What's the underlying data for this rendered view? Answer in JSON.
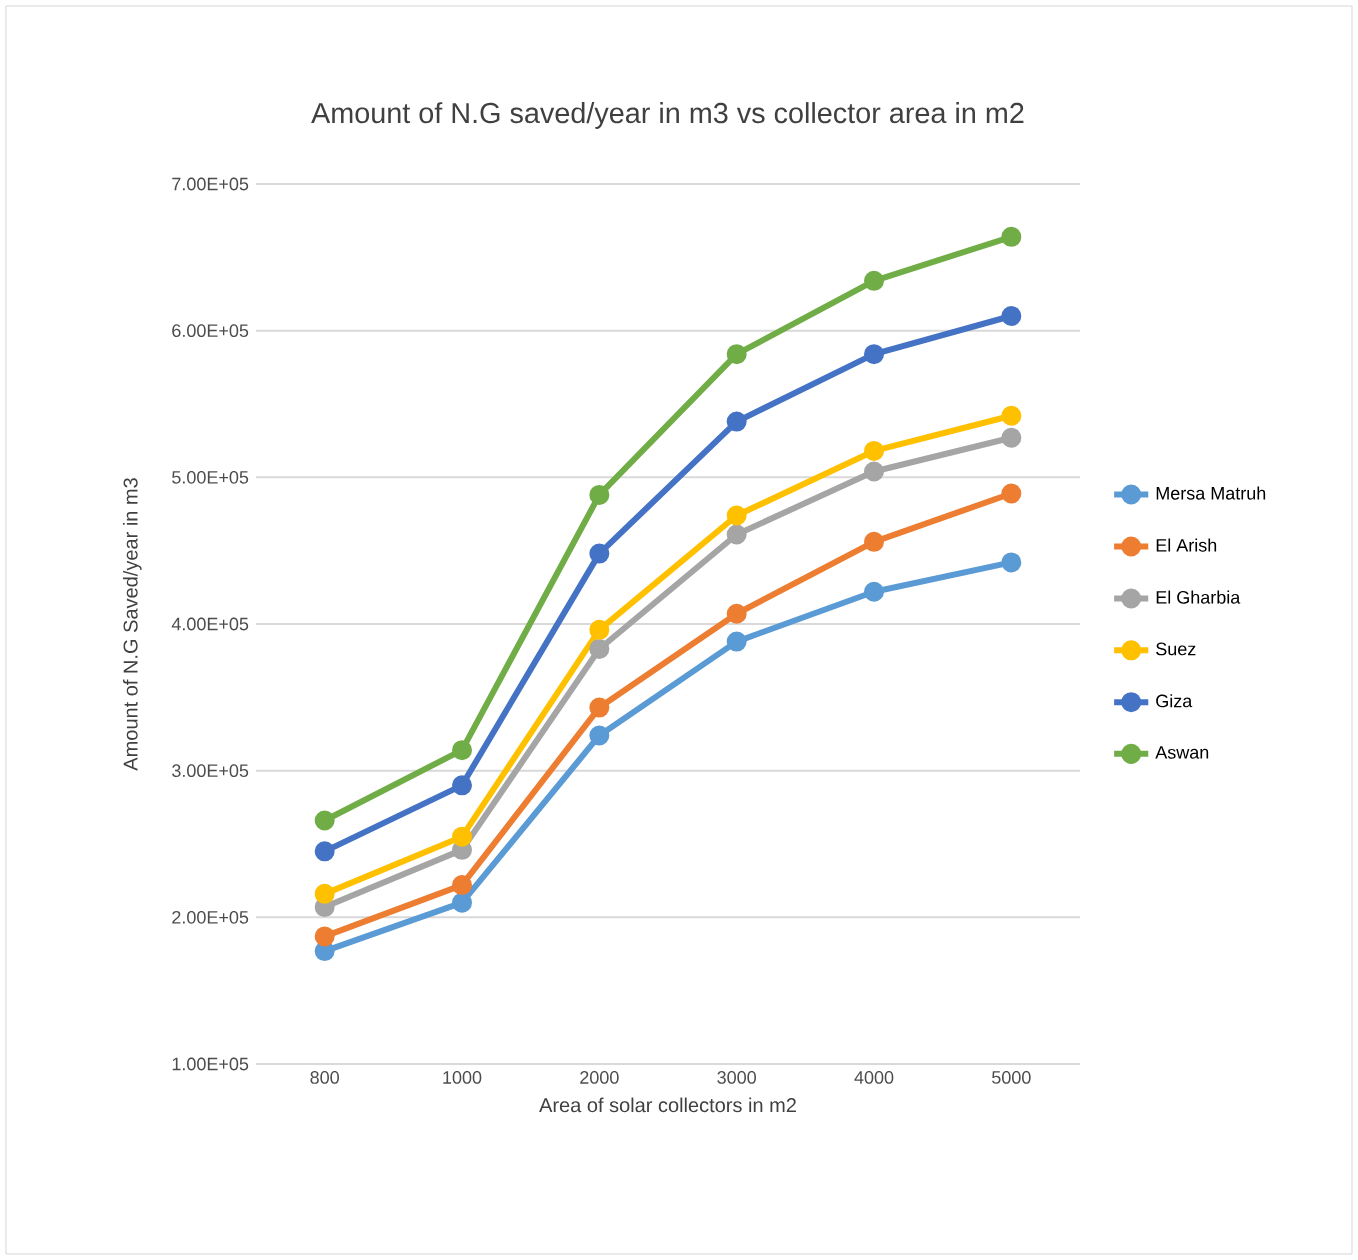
{
  "chart_data": {
    "type": "line",
    "title": "Amount of N.G saved/year in m3 vs collector area in m2",
    "xlabel": "Area of solar collectors in m2",
    "ylabel": "Amount of N.G Saved/year in m3",
    "categories": [
      "800",
      "1000",
      "2000",
      "3000",
      "4000",
      "5000"
    ],
    "series": [
      {
        "name": "Mersa Matruh",
        "color": "#5b9bd5",
        "values": [
          177000,
          210000,
          324000,
          388000,
          422000,
          442000
        ]
      },
      {
        "name": "El Arish",
        "color": "#ed7d31",
        "values": [
          187000,
          222000,
          343000,
          407000,
          456000,
          489000
        ]
      },
      {
        "name": "El Gharbia",
        "color": "#a5a5a5",
        "values": [
          207000,
          246000,
          383000,
          461000,
          504000,
          527000
        ]
      },
      {
        "name": "Suez",
        "color": "#ffc000",
        "values": [
          216000,
          255000,
          396000,
          474000,
          518000,
          542000
        ]
      },
      {
        "name": "Giza",
        "color": "#4472c4",
        "values": [
          245000,
          290000,
          448000,
          538000,
          584000,
          610000
        ]
      },
      {
        "name": "Aswan",
        "color": "#70ad47",
        "values": [
          266000,
          314000,
          488000,
          584000,
          634000,
          664000
        ]
      }
    ],
    "ylim": [
      100000,
      700000
    ],
    "yticks": [
      {
        "value": 100000,
        "label": "1.00E+05"
      },
      {
        "value": 200000,
        "label": "2.00E+05"
      },
      {
        "value": 300000,
        "label": "3.00E+05"
      },
      {
        "value": 400000,
        "label": "4.00E+05"
      },
      {
        "value": 500000,
        "label": "5.00E+05"
      },
      {
        "value": 600000,
        "label": "6.00E+05"
      },
      {
        "value": 700000,
        "label": "7.00E+05"
      }
    ],
    "grid": "y",
    "legend": "right",
    "marker": "circle",
    "line_style": "solid"
  }
}
